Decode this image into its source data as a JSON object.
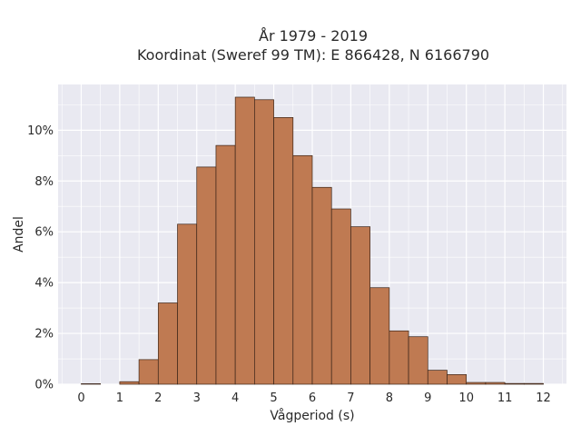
{
  "chart_data": {
    "type": "bar",
    "title_line1": "År 1979 - 2019",
    "title_line2": "Koordinat (Sweref 99 TM): E 866428, N 6166790",
    "xlabel": "Vågperiod (s)",
    "ylabel": "Andel",
    "xlim": [
      -0.6,
      12.6
    ],
    "ylim": [
      0,
      11.8
    ],
    "x_ticks": [
      0,
      1,
      2,
      3,
      4,
      5,
      6,
      7,
      8,
      9,
      10,
      11,
      12
    ],
    "x_tick_labels": [
      "0",
      "1",
      "2",
      "3",
      "4",
      "5",
      "6",
      "7",
      "8",
      "9",
      "10",
      "11",
      "12"
    ],
    "y_ticks": [
      0,
      2,
      4,
      6,
      8,
      10
    ],
    "y_tick_labels": [
      "0%",
      "2%",
      "4%",
      "6%",
      "8%",
      "10%"
    ],
    "grid": true,
    "bin_width": 0.5,
    "bins": [
      {
        "x0": 0.0,
        "value": 0.02
      },
      {
        "x0": 0.5,
        "value": 0.0
      },
      {
        "x0": 1.0,
        "value": 0.1
      },
      {
        "x0": 1.5,
        "value": 0.97
      },
      {
        "x0": 2.0,
        "value": 3.2
      },
      {
        "x0": 2.5,
        "value": 6.3
      },
      {
        "x0": 3.0,
        "value": 8.55
      },
      {
        "x0": 3.5,
        "value": 9.4
      },
      {
        "x0": 4.0,
        "value": 11.3
      },
      {
        "x0": 4.5,
        "value": 11.2
      },
      {
        "x0": 5.0,
        "value": 10.5
      },
      {
        "x0": 5.5,
        "value": 9.0
      },
      {
        "x0": 6.0,
        "value": 7.75
      },
      {
        "x0": 6.5,
        "value": 6.9
      },
      {
        "x0": 7.0,
        "value": 6.2
      },
      {
        "x0": 7.5,
        "value": 3.8
      },
      {
        "x0": 8.0,
        "value": 2.1
      },
      {
        "x0": 8.5,
        "value": 1.87
      },
      {
        "x0": 9.0,
        "value": 0.55
      },
      {
        "x0": 9.5,
        "value": 0.38
      },
      {
        "x0": 10.0,
        "value": 0.07
      },
      {
        "x0": 10.5,
        "value": 0.07
      },
      {
        "x0": 11.0,
        "value": 0.03
      },
      {
        "x0": 11.5,
        "value": 0.03
      }
    ],
    "colors": {
      "bar_fill": "#bf7a52",
      "bar_stroke": "#3a2418",
      "plot_bg": "#e9e9f1",
      "grid": "#ffffff",
      "text": "#2a2a2a"
    }
  }
}
